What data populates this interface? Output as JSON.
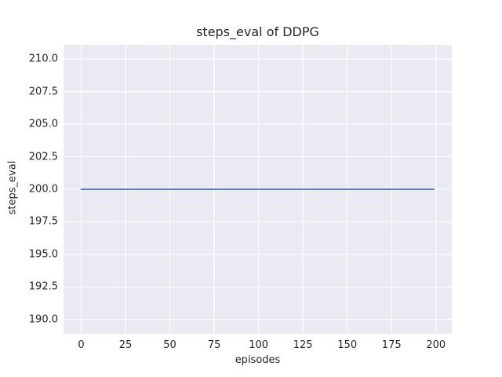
{
  "chart_data": {
    "type": "line",
    "title": "steps_eval of DDPG",
    "xlabel": "episodes",
    "ylabel": "steps_eval",
    "xlim": [
      -9.95,
      208.95
    ],
    "ylim": [
      188.9,
      211.1
    ],
    "xticks": {
      "values": [
        0,
        25,
        50,
        75,
        100,
        125,
        150,
        175,
        200
      ],
      "labels": [
        "0",
        "25",
        "50",
        "75",
        "100",
        "125",
        "150",
        "175",
        "200"
      ]
    },
    "yticks": {
      "values": [
        190.0,
        192.5,
        195.0,
        197.5,
        200.0,
        202.5,
        205.0,
        207.5,
        210.0
      ],
      "labels": [
        "190.0",
        "192.5",
        "195.0",
        "197.5",
        "200.0",
        "202.5",
        "205.0",
        "207.5",
        "210.0"
      ]
    },
    "grid": true,
    "legend_position": "none",
    "plot_bg_color": "#EAEAF2",
    "grid_color": "#FFFFFF",
    "text_color": "#262626",
    "series": [
      {
        "name": "steps_eval",
        "color": "#4C72B0",
        "x": [
          0,
          199
        ],
        "y": [
          200,
          200
        ],
        "note": "constant line at steps_eval = 200 across episodes 0 to 199"
      }
    ]
  }
}
